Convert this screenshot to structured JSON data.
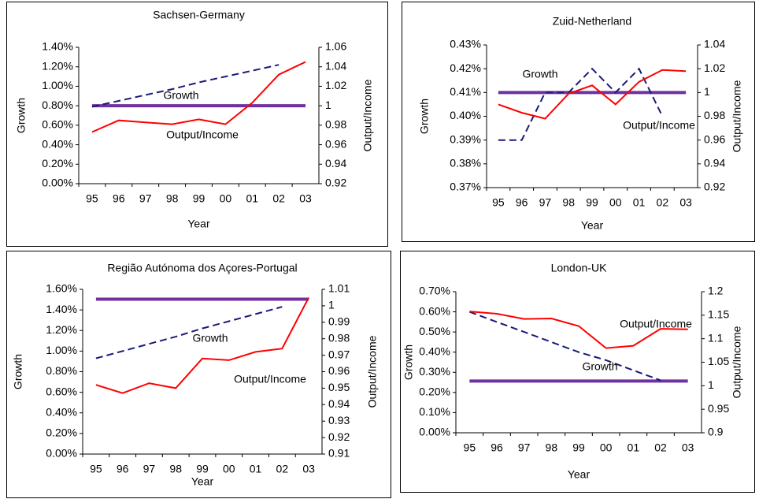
{
  "chart_data": [
    {
      "type": "line",
      "title": "Sachsen-Germany",
      "xlabel": "Year",
      "ylabel": "Growth",
      "y2label": "Output/Income",
      "categories": [
        "95",
        "96",
        "97",
        "98",
        "99",
        "00",
        "01",
        "02",
        "03"
      ],
      "ylim": [
        0,
        1.4
      ],
      "yticks": [
        {
          "value": 0,
          "label": "0.00%"
        },
        {
          "value": 0.2,
          "label": "0.20%"
        },
        {
          "value": 0.4,
          "label": "0.40%"
        },
        {
          "value": 0.6,
          "label": "0.60%"
        },
        {
          "value": 0.8,
          "label": "0.80%"
        },
        {
          "value": 1.0,
          "label": "1.00%"
        },
        {
          "value": 1.2,
          "label": "1.20%"
        },
        {
          "value": 1.4,
          "label": "1.40%"
        }
      ],
      "y2lim": [
        0.92,
        1.06
      ],
      "y2ticks": [
        0.92,
        0.94,
        0.96,
        0.98,
        1,
        1.02,
        1.04,
        1.06
      ],
      "series": [
        {
          "name": "Growth",
          "color": "#1a1a7a",
          "dash": true,
          "values": [
            0.79,
            0.85,
            0.91,
            0.97,
            1.04,
            1.1,
            1.16,
            1.22,
            null
          ]
        },
        {
          "name": "Output/Income",
          "color": "#ff0000",
          "axis": "y2",
          "values": [
            0.973,
            0.985,
            0.983,
            0.981,
            0.986,
            0.981,
            1.003,
            1.032,
            1.045
          ]
        }
      ],
      "ref_line": {
        "value": 1,
        "axis": "y2",
        "color": "#7030a0"
      }
    },
    {
      "type": "line",
      "title": "Zuid-Netherland",
      "xlabel": "Year",
      "ylabel": "Growth",
      "y2label": "Output/Income",
      "categories": [
        "95",
        "96",
        "97",
        "98",
        "99",
        "00",
        "01",
        "02",
        "03"
      ],
      "ylim": [
        0.37,
        0.43
      ],
      "yticks": [
        {
          "value": 0.37,
          "label": "0.37%"
        },
        {
          "value": 0.38,
          "label": "0.38%"
        },
        {
          "value": 0.39,
          "label": "0.39%"
        },
        {
          "value": 0.4,
          "label": "0.40%"
        },
        {
          "value": 0.41,
          "label": "0.41%"
        },
        {
          "value": 0.42,
          "label": "0.42%"
        },
        {
          "value": 0.43,
          "label": "0.43%"
        }
      ],
      "y2lim": [
        0.92,
        1.04
      ],
      "y2ticks": [
        0.92,
        0.94,
        0.96,
        0.98,
        1,
        1.02,
        1.04
      ],
      "series": [
        {
          "name": "Growth",
          "color": "#1a1a7a",
          "dash": true,
          "values": [
            0.39,
            0.39,
            0.41,
            0.41,
            0.42,
            0.41,
            0.42,
            0.4,
            null
          ]
        },
        {
          "name": "Output/Income",
          "color": "#ff0000",
          "axis": "y2",
          "values": [
            0.99,
            0.983,
            0.978,
            0.999,
            1.006,
            0.99,
            1.009,
            1.019,
            1.018
          ]
        }
      ],
      "ref_line": {
        "value": 1,
        "axis": "y2",
        "color": "#7030a0"
      }
    },
    {
      "type": "line",
      "title": "Região Autónoma dos Açores-Portugal",
      "xlabel": "Year",
      "ylabel": "Growth",
      "y2label": "Output/Income",
      "categories": [
        "95",
        "96",
        "97",
        "98",
        "99",
        "00",
        "01",
        "02",
        "03"
      ],
      "ylim": [
        0,
        1.6
      ],
      "yticks": [
        {
          "value": 0,
          "label": "0.00%"
        },
        {
          "value": 0.2,
          "label": "0.20%"
        },
        {
          "value": 0.4,
          "label": "0.40%"
        },
        {
          "value": 0.6,
          "label": "0.60%"
        },
        {
          "value": 0.8,
          "label": "0.80%"
        },
        {
          "value": 1.0,
          "label": "1.00%"
        },
        {
          "value": 1.2,
          "label": "1.20%"
        },
        {
          "value": 1.4,
          "label": "1.40%"
        },
        {
          "value": 1.6,
          "label": "1.60%"
        }
      ],
      "y2lim": [
        0.91,
        1.01
      ],
      "y2ticks": [
        0.91,
        0.92,
        0.93,
        0.94,
        0.95,
        0.96,
        0.97,
        0.98,
        0.99,
        1,
        1.01
      ],
      "series": [
        {
          "name": "Growth",
          "color": "#1a1a7a",
          "dash": true,
          "values": [
            0.93,
            1.0,
            1.07,
            1.14,
            1.22,
            1.29,
            1.36,
            1.43,
            null
          ]
        },
        {
          "name": "Output/Income",
          "color": "#ff0000",
          "axis": "y2",
          "values": [
            0.952,
            0.947,
            0.953,
            0.95,
            0.968,
            0.967,
            0.972,
            0.974,
            1.005
          ]
        }
      ],
      "ref_line": {
        "value": 1.004,
        "axis": "y2",
        "color": "#7030a0"
      }
    },
    {
      "type": "line",
      "title": "London-UK",
      "xlabel": "Year",
      "ylabel": "Growth",
      "y2label": "Output/Income",
      "categories": [
        "95",
        "96",
        "97",
        "98",
        "99",
        "00",
        "01",
        "02",
        "03"
      ],
      "ylim": [
        0,
        0.7
      ],
      "yticks": [
        {
          "value": 0,
          "label": "0.00%"
        },
        {
          "value": 0.1,
          "label": "0.10%"
        },
        {
          "value": 0.2,
          "label": "0.20%"
        },
        {
          "value": 0.3,
          "label": "0.30%"
        },
        {
          "value": 0.4,
          "label": "0.40%"
        },
        {
          "value": 0.5,
          "label": "0.50%"
        },
        {
          "value": 0.6,
          "label": "0.60%"
        },
        {
          "value": 0.7,
          "label": "0.70%"
        }
      ],
      "y2lim": [
        0.9,
        1.2
      ],
      "y2ticks": [
        0.9,
        0.95,
        1,
        1.05,
        1.1,
        1.15,
        1.2
      ],
      "series": [
        {
          "name": "Growth",
          "color": "#1a1a7a",
          "dash": true,
          "values": [
            0.6,
            0.55,
            0.5,
            0.45,
            0.4,
            0.36,
            0.31,
            0.26,
            null
          ]
        },
        {
          "name": "Output/Income",
          "color": "#ff0000",
          "axis": "y2",
          "values": [
            1.158,
            1.153,
            1.142,
            1.143,
            1.127,
            1.08,
            1.085,
            1.121,
            1.12
          ]
        }
      ],
      "ref_line": {
        "value": 1.01,
        "axis": "y2",
        "color": "#7030a0"
      }
    }
  ]
}
